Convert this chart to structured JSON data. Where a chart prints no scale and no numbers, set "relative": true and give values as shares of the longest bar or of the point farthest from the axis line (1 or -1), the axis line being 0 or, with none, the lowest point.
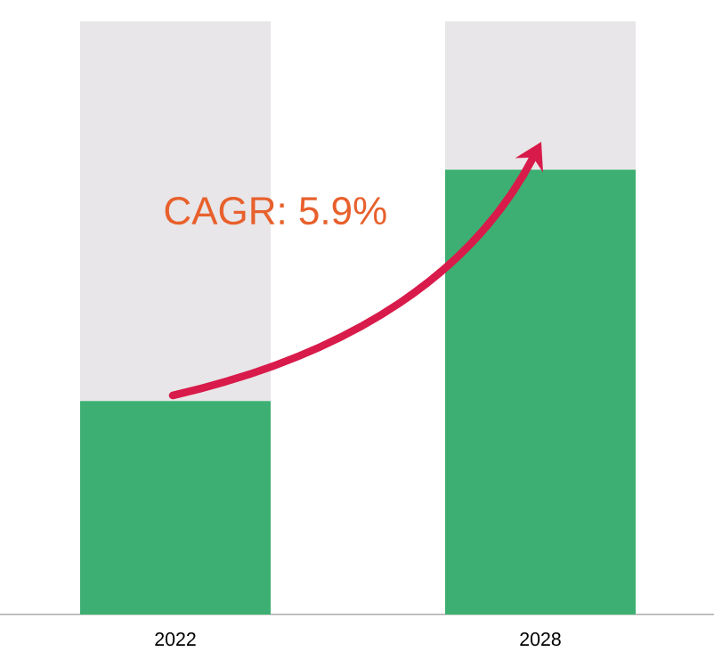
{
  "chart_data": {
    "type": "bar",
    "relative": true,
    "stacked": true,
    "categories": [
      "2022",
      "2028"
    ],
    "series": [
      {
        "color": "#3daf72",
        "values": [
          0.36,
          0.75
        ]
      },
      {
        "color": "#e8e6e8",
        "values": [
          0.64,
          0.25
        ]
      }
    ],
    "annotations": [
      "CAGR: 5.9%"
    ]
  }
}
